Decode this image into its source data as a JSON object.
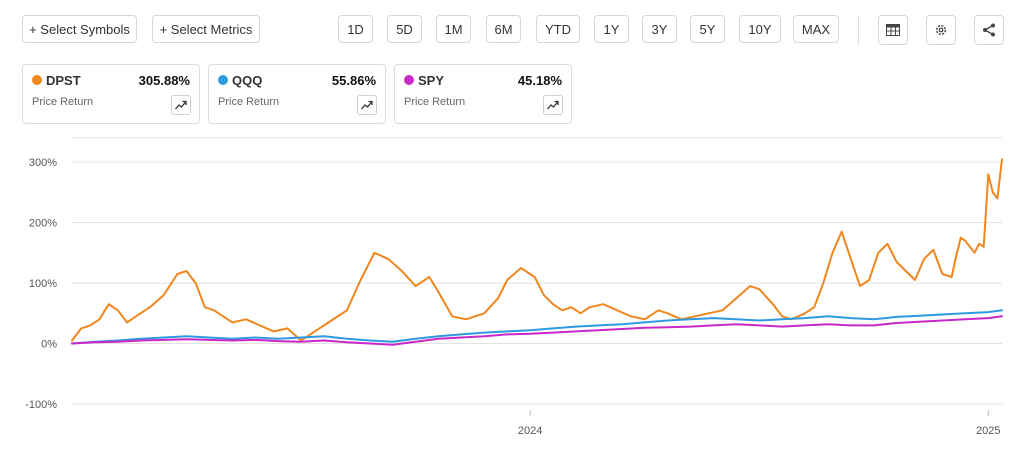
{
  "toolbar": {
    "select_symbols": "+ Select Symbols",
    "select_metrics": "+ Select Metrics",
    "ranges": [
      "1D",
      "5D",
      "1M",
      "6M",
      "YTD",
      "1Y",
      "3Y",
      "5Y",
      "10Y",
      "MAX"
    ]
  },
  "icons": {
    "table": "table-icon",
    "settings": "gear-icon",
    "share": "share-icon",
    "trend": "trend-icon"
  },
  "cards": [
    {
      "symbol": "DPST",
      "value": "305.88%",
      "metric": "Price Return",
      "color": "#f0861e"
    },
    {
      "symbol": "QQQ",
      "value": "55.86%",
      "metric": "Price Return",
      "color": "#2e9ae0"
    },
    {
      "symbol": "SPY",
      "value": "45.18%",
      "metric": "Price Return",
      "color": "#c828c8"
    }
  ],
  "chart_data": {
    "type": "line",
    "ylim": [
      -110,
      340
    ],
    "xlim": [
      2023.0,
      2025.03
    ],
    "yticks": [
      300,
      200,
      100,
      0,
      -100
    ],
    "ytick_labels": [
      "300%",
      "200%",
      "100%",
      "0%",
      "-100%"
    ],
    "xticks": [
      2024.0,
      2025.0
    ],
    "xtick_labels": [
      "2024",
      "2025"
    ],
    "grid": true,
    "series": [
      {
        "name": "DPST",
        "color": "#f0861e",
        "x": [
          2023.0,
          2023.02,
          2023.04,
          2023.06,
          2023.08,
          2023.1,
          2023.12,
          2023.14,
          2023.17,
          2023.2,
          2023.23,
          2023.25,
          2023.27,
          2023.29,
          2023.31,
          2023.33,
          2023.35,
          2023.38,
          2023.41,
          2023.44,
          2023.47,
          2023.5,
          2023.53,
          2023.56,
          2023.6,
          2023.63,
          2023.66,
          2023.69,
          2023.72,
          2023.75,
          2023.78,
          2023.8,
          2023.83,
          2023.86,
          2023.9,
          2023.93,
          2023.95,
          2023.98,
          2024.01,
          2024.03,
          2024.05,
          2024.07,
          2024.09,
          2024.11,
          2024.13,
          2024.16,
          2024.19,
          2024.22,
          2024.25,
          2024.28,
          2024.3,
          2024.33,
          2024.36,
          2024.39,
          2024.42,
          2024.45,
          2024.48,
          2024.5,
          2024.53,
          2024.55,
          2024.57,
          2024.6,
          2024.62,
          2024.64,
          2024.66,
          2024.68,
          2024.7,
          2024.72,
          2024.74,
          2024.76,
          2024.78,
          2024.8,
          2024.82,
          2024.84,
          2024.86,
          2024.88,
          2024.9,
          2024.92,
          2024.93,
          2024.94,
          2024.95,
          2024.96,
          2024.97,
          2024.98,
          2024.99,
          2025.0,
          2025.01,
          2025.02,
          2025.03
        ],
        "y": [
          5,
          25,
          30,
          40,
          65,
          55,
          35,
          45,
          60,
          80,
          115,
          120,
          100,
          60,
          55,
          45,
          35,
          40,
          30,
          20,
          25,
          5,
          20,
          35,
          55,
          105,
          150,
          140,
          120,
          95,
          110,
          85,
          45,
          40,
          50,
          75,
          105,
          125,
          110,
          80,
          65,
          55,
          60,
          50,
          60,
          65,
          55,
          45,
          40,
          55,
          50,
          40,
          45,
          50,
          55,
          75,
          95,
          90,
          65,
          45,
          40,
          50,
          60,
          100,
          150,
          185,
          140,
          95,
          105,
          150,
          165,
          135,
          120,
          105,
          140,
          155,
          115,
          110,
          145,
          175,
          170,
          160,
          150,
          165,
          160,
          280,
          250,
          240,
          305
        ]
      },
      {
        "name": "QQQ",
        "color": "#2e9ae0",
        "x": [
          2023.0,
          2023.05,
          2023.1,
          2023.15,
          2023.2,
          2023.25,
          2023.3,
          2023.35,
          2023.4,
          2023.45,
          2023.5,
          2023.55,
          2023.6,
          2023.65,
          2023.7,
          2023.75,
          2023.8,
          2023.85,
          2023.9,
          2023.95,
          2024.0,
          2024.05,
          2024.1,
          2024.15,
          2024.2,
          2024.25,
          2024.3,
          2024.35,
          2024.4,
          2024.45,
          2024.5,
          2024.55,
          2024.6,
          2024.65,
          2024.7,
          2024.75,
          2024.8,
          2024.85,
          2024.9,
          2024.95,
          2025.0,
          2025.03
        ],
        "y": [
          0,
          3,
          5,
          8,
          10,
          12,
          10,
          8,
          10,
          8,
          10,
          12,
          8,
          5,
          3,
          8,
          12,
          15,
          18,
          20,
          22,
          25,
          28,
          30,
          32,
          35,
          38,
          40,
          42,
          40,
          38,
          40,
          42,
          45,
          42,
          40,
          44,
          46,
          48,
          50,
          52,
          55
        ]
      },
      {
        "name": "SPY",
        "color": "#c828c8",
        "x": [
          2023.0,
          2023.05,
          2023.1,
          2023.15,
          2023.2,
          2023.25,
          2023.3,
          2023.35,
          2023.4,
          2023.45,
          2023.5,
          2023.55,
          2023.6,
          2023.65,
          2023.7,
          2023.75,
          2023.8,
          2023.85,
          2023.9,
          2023.95,
          2024.0,
          2024.05,
          2024.1,
          2024.15,
          2024.2,
          2024.25,
          2024.3,
          2024.35,
          2024.4,
          2024.45,
          2024.5,
          2024.55,
          2024.6,
          2024.65,
          2024.7,
          2024.75,
          2024.8,
          2024.85,
          2024.9,
          2024.95,
          2025.0,
          2025.03
        ],
        "y": [
          0,
          2,
          3,
          5,
          6,
          7,
          6,
          5,
          6,
          4,
          3,
          5,
          2,
          0,
          -2,
          3,
          8,
          10,
          12,
          15,
          16,
          18,
          20,
          22,
          24,
          26,
          27,
          28,
          30,
          32,
          30,
          28,
          30,
          32,
          30,
          30,
          34,
          36,
          38,
          40,
          42,
          45
        ]
      }
    ]
  }
}
